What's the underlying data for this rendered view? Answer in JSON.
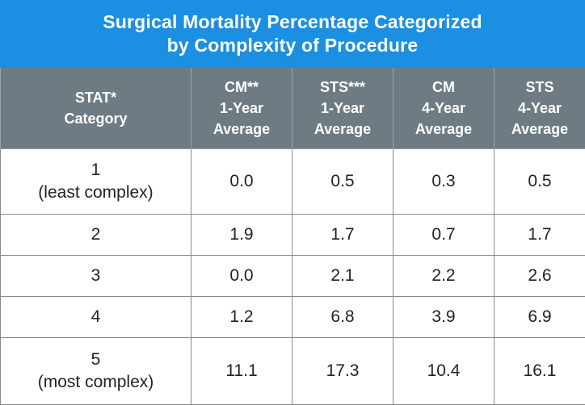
{
  "colors": {
    "title_bg": "#1b8fe2",
    "header_bg": "#6e7b82",
    "text": "#222222"
  },
  "chart_data": {
    "type": "table",
    "title_line1": "Surgical Mortality Percentage Categorized",
    "title_line2": "by Complexity of Procedure",
    "columns": [
      {
        "lines": [
          "STAT*",
          "Category"
        ]
      },
      {
        "lines": [
          "CM**",
          "1-Year",
          "Average"
        ]
      },
      {
        "lines": [
          "STS***",
          "1-Year",
          "Average"
        ]
      },
      {
        "lines": [
          "CM",
          "4-Year",
          "Average"
        ]
      },
      {
        "lines": [
          "STS",
          "4-Year",
          "Average"
        ]
      }
    ],
    "rows": [
      {
        "category": [
          "1",
          "(least complex)"
        ],
        "values": [
          "0.0",
          "0.5",
          "0.3",
          "0.5"
        ]
      },
      {
        "category": [
          "2"
        ],
        "values": [
          "1.9",
          "1.7",
          "0.7",
          "1.7"
        ]
      },
      {
        "category": [
          "3"
        ],
        "values": [
          "0.0",
          "2.1",
          "2.2",
          "2.6"
        ]
      },
      {
        "category": [
          "4"
        ],
        "values": [
          "1.2",
          "6.8",
          "3.9",
          "6.9"
        ]
      },
      {
        "category": [
          "5",
          "(most complex)"
        ],
        "values": [
          "11.1",
          "17.3",
          "10.4",
          "16.1"
        ]
      }
    ]
  }
}
